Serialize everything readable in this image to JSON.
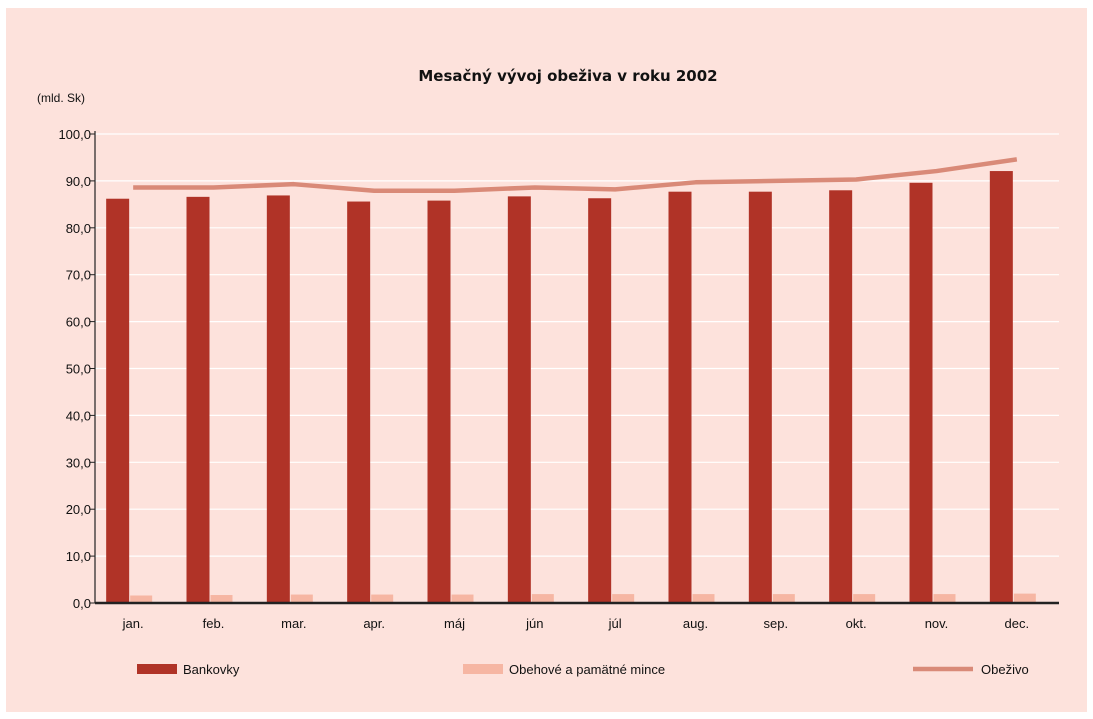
{
  "chart_data": {
    "type": "bar",
    "title": "Mesačný vývoj obeživa v roku 2002",
    "unit_label": "(mld. Sk)",
    "categories": [
      "jan.",
      "feb.",
      "mar.",
      "apr.",
      "máj",
      "jún",
      "júl",
      "aug.",
      "sep.",
      "okt.",
      "nov.",
      "dec."
    ],
    "y_ticks": [
      "0,0",
      "10,0",
      "20,0",
      "30,0",
      "40,0",
      "50,0",
      "60,0",
      "70,0",
      "80,0",
      "90,0",
      "100,0"
    ],
    "ylim": [
      0,
      100
    ],
    "grid": true,
    "legend_position": "bottom",
    "series": [
      {
        "name": "Bankovky",
        "type": "bar",
        "color": "#b03327",
        "values": [
          86.2,
          86.6,
          86.9,
          85.6,
          85.8,
          86.7,
          86.3,
          87.7,
          87.7,
          88.0,
          89.6,
          92.1
        ]
      },
      {
        "name": "Obehové a pamätné mince",
        "type": "bar",
        "color": "#f6b6a3",
        "values": [
          1.6,
          1.7,
          1.8,
          1.8,
          1.8,
          1.9,
          1.9,
          1.9,
          1.9,
          1.9,
          1.9,
          2.0
        ]
      },
      {
        "name": "Obeživo",
        "type": "line",
        "color": "#d98a78",
        "values": [
          88.6,
          88.6,
          89.3,
          87.9,
          87.9,
          88.6,
          88.2,
          89.7,
          90.0,
          90.3,
          92.1,
          94.6
        ]
      }
    ]
  }
}
